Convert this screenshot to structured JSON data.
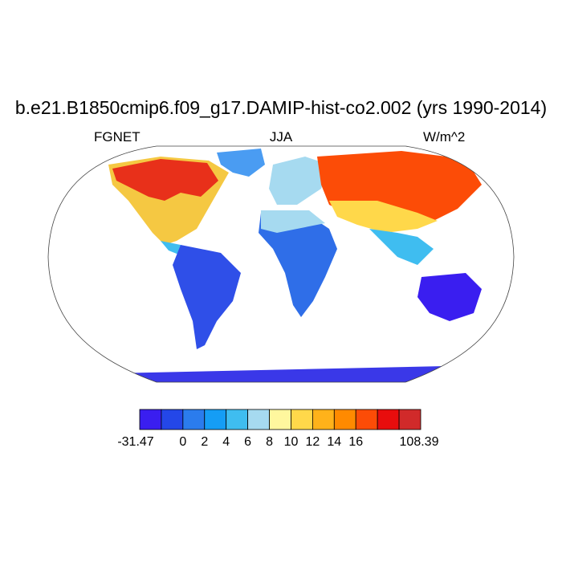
{
  "title": "b.e21.B1850cmip6.f09_g17.DAMIP-hist-co2.002 (yrs 1990-2014)",
  "subtitle_left": "FGNET",
  "subtitle_center": "JJA",
  "subtitle_right": "W/m^2",
  "colorbar": {
    "colors": [
      "#3a1ef0",
      "#2447e8",
      "#2b7ced",
      "#159df5",
      "#3fbdf0",
      "#a6daf0",
      "#fff79e",
      "#ffd84a",
      "#ffb21a",
      "#ff8a00",
      "#fc4c07",
      "#e80d0d",
      "#d12a2a"
    ],
    "tick_labels": [
      "-31.47",
      "0",
      "2",
      "4",
      "6",
      "8",
      "10",
      "12",
      "14",
      "16",
      "108.39"
    ],
    "min": -31.47,
    "max": 108.39,
    "levels": [
      0,
      2,
      4,
      6,
      8,
      10,
      12,
      14,
      16
    ]
  },
  "map": {
    "projection": "Robinson",
    "land_color_palette": "blue-to-red",
    "ocean_color": "#ffffff"
  }
}
